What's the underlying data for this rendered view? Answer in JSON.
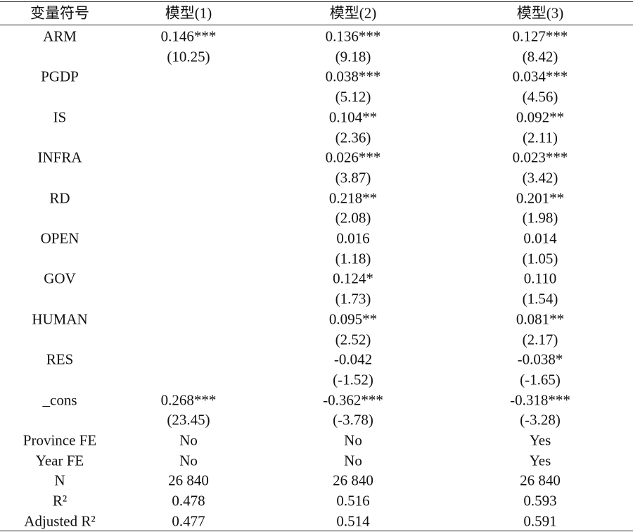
{
  "table": {
    "header": [
      "变量符号",
      "模型(1)",
      "模型(2)",
      "模型(3)"
    ],
    "rows": [
      [
        "ARM",
        "0.146***",
        "0.136***",
        "0.127***"
      ],
      [
        null,
        "(10.25)",
        "(9.18)",
        "(8.42)"
      ],
      [
        "PGDP",
        null,
        "0.038***",
        "0.034***"
      ],
      [
        null,
        null,
        "(5.12)",
        "(4.56)"
      ],
      [
        "IS",
        null,
        "0.104**",
        "0.092**"
      ],
      [
        null,
        null,
        "(2.36)",
        "(2.11)"
      ],
      [
        "INFRA",
        null,
        "0.026***",
        "0.023***"
      ],
      [
        null,
        null,
        "(3.87)",
        "(3.42)"
      ],
      [
        "RD",
        null,
        "0.218**",
        "0.201**"
      ],
      [
        null,
        null,
        "(2.08)",
        "(1.98)"
      ],
      [
        "OPEN",
        null,
        "0.016",
        "0.014"
      ],
      [
        null,
        null,
        "(1.18)",
        "(1.05)"
      ],
      [
        "GOV",
        null,
        "0.124*",
        "0.110"
      ],
      [
        null,
        null,
        "(1.73)",
        "(1.54)"
      ],
      [
        "HUMAN",
        null,
        "0.095**",
        "0.081**"
      ],
      [
        null,
        null,
        "(2.52)",
        "(2.17)"
      ],
      [
        "RES",
        null,
        "-0.042",
        "-0.038*"
      ],
      [
        null,
        null,
        "(-1.52)",
        "(-1.65)"
      ],
      [
        "_cons",
        "0.268***",
        "-0.362***",
        "-0.318***"
      ],
      [
        null,
        "(23.45)",
        "(-3.78)",
        "(-3.28)"
      ],
      [
        "Province FE",
        "No",
        "No",
        "Yes"
      ],
      [
        "Year FE",
        "No",
        "No",
        "Yes"
      ],
      [
        "N",
        "26 840",
        "26 840",
        "26 840"
      ],
      [
        "R²",
        "0.478",
        "0.516",
        "0.593"
      ],
      [
        "Adjusted R²",
        "0.477",
        "0.514",
        "0.591"
      ]
    ]
  }
}
